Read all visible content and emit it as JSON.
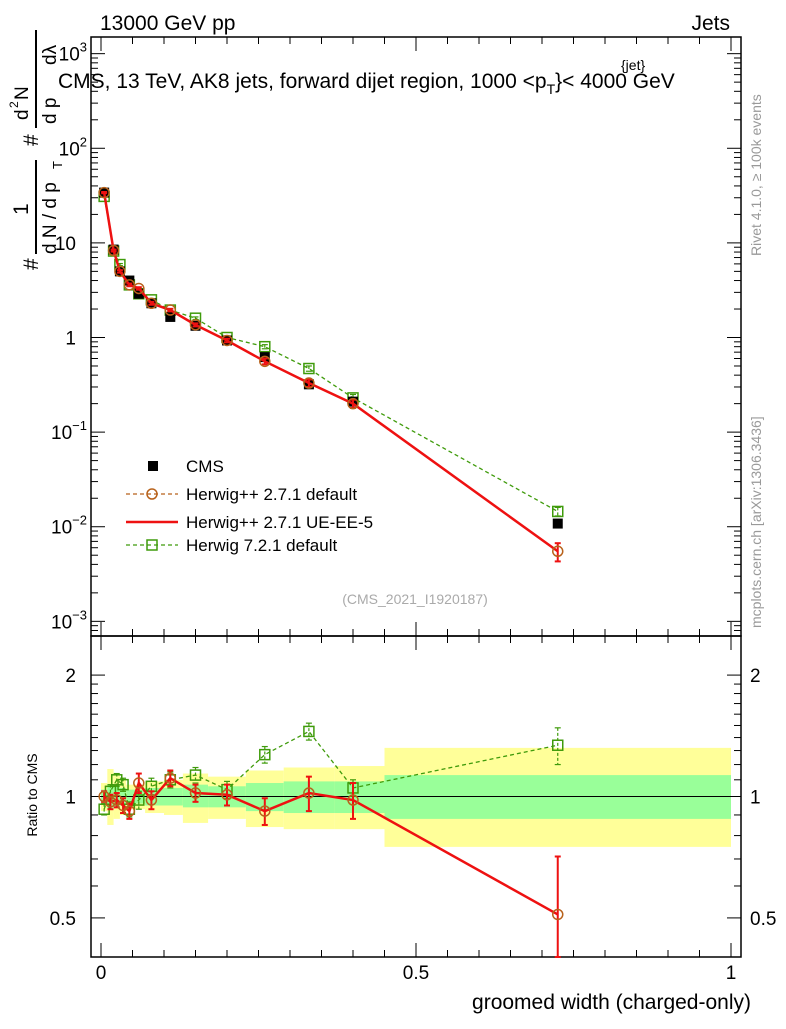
{
  "header": {
    "left": "13000 GeV pp",
    "right": "Jets"
  },
  "main_plot": {
    "title_parts": {
      "pre": "CMS, 13 TeV, AK8 jets, forward dijet region, 1000 <p",
      "sup": "{jet}",
      "sub": "T",
      "post": "}< 4000 GeV"
    },
    "ylabel_parts": {
      "hash1": "#",
      "one": "1",
      "dNdp": "d N / d p",
      "T": "T",
      "hash2": "#",
      "dp": "d p",
      "dsupN": "d",
      "sup2": "2",
      "N": "N",
      "dlambda": "dλ"
    },
    "watermark": "(CMS_2021_I1920187)",
    "y_ticks": [
      {
        "base": "10",
        "exp": "−3",
        "value": 0.001
      },
      {
        "base": "10",
        "exp": "−2",
        "value": 0.01
      },
      {
        "base": "10",
        "exp": "−1",
        "value": 0.1
      },
      {
        "base": "1",
        "exp": "",
        "value": 1
      },
      {
        "base": "10",
        "exp": "",
        "value": 10
      },
      {
        "base": "10",
        "exp": "2",
        "value": 100
      },
      {
        "base": "10",
        "exp": "3",
        "value": 1000
      }
    ]
  },
  "legend": {
    "cms": "CMS",
    "h271_default": "Herwig++ 2.7.1 default",
    "h271_ueee5": "Herwig++ 2.7.1 UE-EE-5",
    "h721_default": "Herwig 7.2.1 default"
  },
  "ratio_plot": {
    "ylabel": "Ratio to CMS",
    "y_ticks": [
      "0.5",
      "1",
      "2"
    ]
  },
  "side_text": {
    "rivet": "Rivet 4.1.0, ≥ 100k events",
    "mcplots": "mcplots.cern.ch [arXiv:1306.3436]"
  },
  "colors": {
    "cms": "#000000",
    "h271_default": "#b8621b",
    "h271_ueee5": "#ee1111",
    "h721_default": "#3f9b0b",
    "band_inner": "#99ff99",
    "band_outer": "#ffff99"
  },
  "chart_data": [
    {
      "type": "scatter",
      "title": "CMS, 13 TeV, AK8 jets, forward dijet region, 1000 < pT{jet} < 4000 GeV",
      "xlabel": "groomed width (charged-only)",
      "ylabel": "1/N dN/dpT d2N/dpT dlambda",
      "xlim": [
        0,
        1
      ],
      "ylim": [
        0.0007,
        1500
      ],
      "yscale": "log",
      "x_ticks": [
        "0",
        "0.5",
        "1"
      ],
      "bin_edges": [
        0,
        0.01,
        0.02,
        0.03,
        0.04,
        0.06,
        0.07,
        0.1,
        0.13,
        0.17,
        0.23,
        0.29,
        0.37,
        0.45,
        1.0
      ],
      "series": [
        {
          "name": "CMS",
          "x": [
            0.005,
            0.02,
            0.03,
            0.045,
            0.06,
            0.08,
            0.11,
            0.15,
            0.2,
            0.26,
            0.33,
            0.4,
            0.725
          ],
          "values": [
            34,
            8.5,
            5.0,
            4.0,
            2.9,
            2.3,
            1.65,
            1.33,
            0.93,
            0.62,
            0.32,
            0.21,
            0.0108
          ]
        },
        {
          "name": "Herwig++ 2.7.1 default",
          "x": [
            0.005,
            0.02,
            0.03,
            0.045,
            0.06,
            0.08,
            0.11,
            0.15,
            0.2,
            0.26,
            0.33,
            0.4,
            0.725
          ],
          "values": [
            34,
            8.3,
            5.0,
            3.6,
            3.3,
            2.3,
            1.95,
            1.36,
            0.93,
            0.56,
            0.33,
            0.2,
            0.0055
          ],
          "errors": [
            0.5,
            0.2,
            0.15,
            0.12,
            0.1,
            0.08,
            0.06,
            0.05,
            0.04,
            0.04,
            0.03,
            0.02,
            0.0012
          ]
        },
        {
          "name": "Herwig++ 2.7.1 UE-EE-5",
          "x": [
            0.005,
            0.02,
            0.03,
            0.045,
            0.06,
            0.08,
            0.11,
            0.15,
            0.2,
            0.26,
            0.33,
            0.4,
            0.725
          ],
          "values": [
            34,
            8.3,
            5.0,
            3.6,
            3.3,
            2.3,
            1.95,
            1.36,
            0.93,
            0.56,
            0.33,
            0.2,
            0.0055
          ],
          "errors": [
            0.5,
            0.2,
            0.15,
            0.12,
            0.1,
            0.08,
            0.06,
            0.05,
            0.04,
            0.04,
            0.03,
            0.02,
            0.0012
          ]
        },
        {
          "name": "Herwig 7.2.1 default",
          "x": [
            0.005,
            0.02,
            0.03,
            0.045,
            0.06,
            0.08,
            0.11,
            0.15,
            0.2,
            0.26,
            0.33,
            0.4,
            0.725
          ],
          "values": [
            31,
            8.2,
            5.9,
            3.6,
            2.9,
            2.5,
            1.95,
            1.6,
            1.0,
            0.8,
            0.47,
            0.23,
            0.0145
          ],
          "errors": [
            0.5,
            0.2,
            0.15,
            0.12,
            0.1,
            0.08,
            0.06,
            0.05,
            0.04,
            0.04,
            0.03,
            0.02,
            0.0015
          ]
        }
      ]
    },
    {
      "type": "line",
      "title": "Ratio to CMS",
      "xlabel": "groomed width (charged-only)",
      "ylabel": "Ratio to CMS",
      "xlim": [
        0,
        1
      ],
      "ylim": [
        0.4,
        2.5
      ],
      "yscale": "log",
      "bands": {
        "edges": [
          0,
          0.01,
          0.02,
          0.03,
          0.04,
          0.06,
          0.07,
          0.1,
          0.13,
          0.17,
          0.23,
          0.29,
          0.37,
          0.45,
          1.0
        ],
        "inner_lo": [
          0.96,
          0.93,
          0.94,
          0.95,
          0.96,
          0.96,
          0.95,
          0.95,
          0.94,
          0.94,
          0.92,
          0.91,
          0.91,
          0.88
        ],
        "inner_hi": [
          1.04,
          1.07,
          1.06,
          1.05,
          1.04,
          1.04,
          1.05,
          1.05,
          1.07,
          1.06,
          1.08,
          1.09,
          1.09,
          1.13
        ],
        "outer_lo": [
          0.92,
          0.85,
          0.88,
          0.9,
          0.93,
          0.93,
          0.91,
          0.9,
          0.86,
          0.88,
          0.84,
          0.83,
          0.83,
          0.75
        ],
        "outer_hi": [
          1.08,
          1.17,
          1.13,
          1.1,
          1.07,
          1.07,
          1.09,
          1.1,
          1.14,
          1.12,
          1.16,
          1.18,
          1.19,
          1.32
        ]
      },
      "series": [
        {
          "name": "Herwig++ 2.7.1 default",
          "x": [
            0.005,
            0.015,
            0.025,
            0.035,
            0.045,
            0.06,
            0.08,
            0.11,
            0.15,
            0.2,
            0.26,
            0.33,
            0.4,
            0.725
          ],
          "values": [
            1.0,
            0.97,
            0.98,
            0.95,
            0.92,
            1.08,
            0.98,
            1.11,
            1.02,
            1.01,
            0.92,
            1.02,
            0.98,
            0.51
          ],
          "errors": [
            0.03,
            0.04,
            0.04,
            0.04,
            0.04,
            0.06,
            0.05,
            0.05,
            0.05,
            0.06,
            0.07,
            0.1,
            0.1,
            0.2
          ]
        },
        {
          "name": "Herwig++ 2.7.1 UE-EE-5",
          "x": [
            0.005,
            0.015,
            0.025,
            0.035,
            0.045,
            0.06,
            0.08,
            0.11,
            0.15,
            0.2,
            0.26,
            0.33,
            0.4,
            0.725
          ],
          "values": [
            1.0,
            0.97,
            0.98,
            0.95,
            0.92,
            1.08,
            0.98,
            1.11,
            1.02,
            1.01,
            0.92,
            1.02,
            0.98,
            0.51
          ],
          "errors": [
            0.03,
            0.04,
            0.04,
            0.04,
            0.04,
            0.06,
            0.05,
            0.05,
            0.05,
            0.06,
            0.07,
            0.1,
            0.1,
            0.2
          ]
        },
        {
          "name": "Herwig 7.2.1 default",
          "x": [
            0.005,
            0.015,
            0.025,
            0.035,
            0.045,
            0.06,
            0.08,
            0.11,
            0.15,
            0.2,
            0.26,
            0.33,
            0.4,
            0.725
          ],
          "values": [
            0.93,
            1.03,
            1.1,
            1.07,
            0.93,
            0.98,
            1.06,
            1.1,
            1.13,
            1.04,
            1.27,
            1.45,
            1.05,
            1.34
          ],
          "errors": [
            0.03,
            0.04,
            0.04,
            0.04,
            0.04,
            0.05,
            0.05,
            0.05,
            0.05,
            0.05,
            0.06,
            0.07,
            0.05,
            0.14
          ]
        }
      ]
    }
  ]
}
